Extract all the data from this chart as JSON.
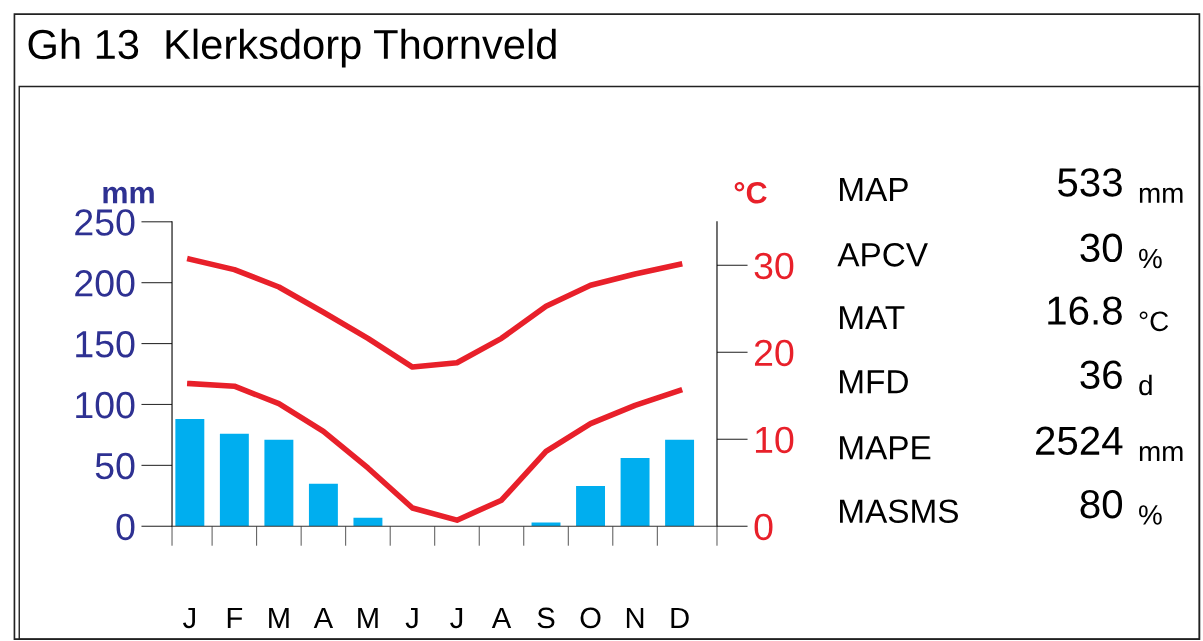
{
  "chart_data": {
    "type": "bar",
    "title": "Gh 13  Klerksdorp Thornveld",
    "categories": [
      "J",
      "F",
      "M",
      "A",
      "M",
      "J",
      "J",
      "A",
      "S",
      "O",
      "N",
      "D"
    ],
    "ylabel": "mm",
    "y2label": "°C",
    "ylim": [
      0,
      250
    ],
    "yticks": [
      0,
      50,
      100,
      150,
      200,
      250
    ],
    "y2lim": [
      0,
      35
    ],
    "y2ticks": [
      0,
      10,
      20,
      30
    ],
    "series": [
      {
        "color": "#00aeef",
        "values": [
          88,
          76,
          71,
          35,
          7,
          0,
          0,
          0,
          3,
          33,
          56,
          71
        ]
      },
      {
        "type": "line",
        "axis": "y2",
        "color": "#e8202a",
        "values": [
          30.7,
          29.5,
          27.5,
          24.6,
          21.6,
          18.3,
          18.8,
          21.6,
          25.3,
          27.7,
          29.0,
          30.1
        ]
      },
      {
        "type": "line",
        "axis": "y2",
        "color": "#e8202a",
        "values": [
          16.4,
          16.1,
          14.1,
          10.9,
          6.7,
          2.1,
          0.7,
          3.0,
          8.6,
          11.8,
          13.9,
          15.6
        ]
      }
    ],
    "grid": false,
    "legend": false,
    "marker": "none",
    "line_style": "solid",
    "annotations": [
      "MAP",
      "533",
      "mm",
      "APCV",
      "30",
      "%",
      "MAT",
      "16.8",
      "°C",
      "MFD",
      "36",
      "d",
      "MAPE",
      "2524",
      "mm",
      "MASMS",
      "80",
      "%"
    ]
  }
}
